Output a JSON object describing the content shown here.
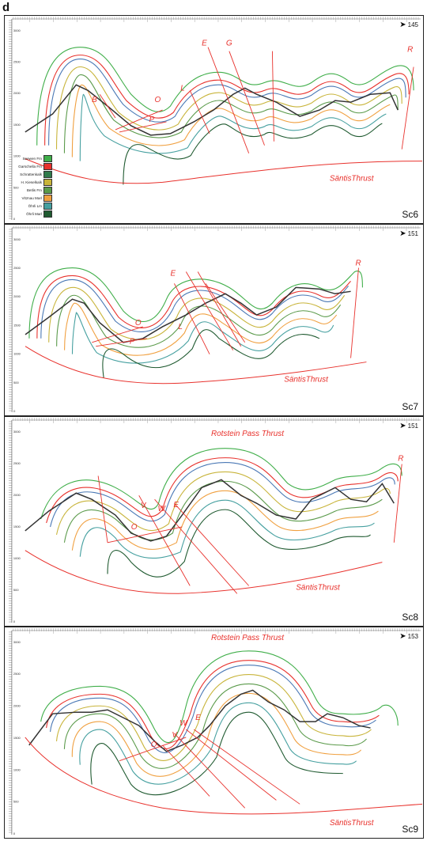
{
  "figure_letter": "d",
  "colors": {
    "thrust": "#e8312c",
    "topography": "#333333",
    "seewen": "#3fae49",
    "garschella": "#e8312c",
    "schrattenkalk": "#4a78b5",
    "kieselkalk": "#c8b43a",
    "betlis": "#4f8f3a",
    "vitznau": "#f0a040",
    "ohrli_lm": "#46a0a0",
    "ohrli_marl": "#1f5a30"
  },
  "legend": [
    {
      "label": "Seewen Fm",
      "color": "#3fae49"
    },
    {
      "label": "Garschella Fm",
      "color": "#e8312c"
    },
    {
      "label": "Schrattenkalk",
      "color": "#2f7a4a"
    },
    {
      "label": "H. Kieselkalk",
      "color": "#c8b43a"
    },
    {
      "label": "Betlis Fm",
      "color": "#5a9a4a"
    },
    {
      "label": "Vitznau Marl",
      "color": "#f0a040"
    },
    {
      "label": "Öhrli Lm",
      "color": "#46a0a0"
    },
    {
      "label": "Öhrli Marl",
      "color": "#1f5a30"
    }
  ],
  "panels": [
    {
      "id": "Sc6",
      "label": "Sc6",
      "azimuth": "145",
      "ticks": [
        "3000",
        "2500",
        "2000",
        "1500",
        "1000",
        "500",
        "0"
      ],
      "faults": [
        "B",
        "O",
        "P",
        "L",
        "E",
        "G",
        "R"
      ],
      "thrust_labels": [
        "SäntisThrust"
      ]
    },
    {
      "id": "Sc7",
      "label": "Sc7",
      "azimuth": "151",
      "ticks": [
        "3000",
        "2500",
        "2000",
        "1500",
        "1000",
        "500",
        "0"
      ],
      "faults": [
        "O",
        "P",
        "L",
        "E",
        "R"
      ],
      "thrust_labels": [
        "SäntisThrust"
      ]
    },
    {
      "id": "Sc8",
      "label": "Sc8",
      "azimuth": "151",
      "ticks": [
        "3000",
        "2500",
        "2000",
        "1500",
        "1000",
        "500",
        "0"
      ],
      "faults": [
        "O",
        "V",
        "W",
        "E",
        "R"
      ],
      "thrust_labels": [
        "Rotstein Pass Thrust",
        "SäntisThrust"
      ]
    },
    {
      "id": "Sc9",
      "label": "Sc9",
      "azimuth": "153",
      "ticks": [
        "3000",
        "2500",
        "2000",
        "1500",
        "1000",
        "500",
        "0"
      ],
      "faults": [
        "O",
        "V",
        "W",
        "E"
      ],
      "thrust_labels": [
        "Rotstein Pass Thrust",
        "SäntisThrust"
      ]
    }
  ]
}
